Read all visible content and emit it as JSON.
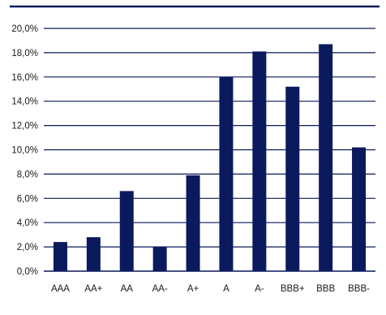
{
  "chart_data": {
    "type": "bar",
    "title": "",
    "xlabel": "",
    "ylabel": "",
    "categories": [
      "AAA",
      "AA+",
      "AA",
      "AA-",
      "A+",
      "A",
      "A-",
      "BBB+",
      "BBB",
      "BBB-"
    ],
    "values": [
      2.4,
      2.8,
      6.6,
      2.0,
      7.9,
      16.0,
      18.1,
      15.2,
      18.7,
      10.2
    ],
    "ylim": [
      0,
      20
    ],
    "ytick_values": [
      0,
      2,
      4,
      6,
      8,
      10,
      12,
      14,
      16,
      18,
      20
    ],
    "ytick_labels": [
      "0,0%",
      "2,0%",
      "4,0%",
      "6,0%",
      "8,0%",
      "10,0%",
      "12,0%",
      "14,0%",
      "16,0%",
      "18,0%",
      "20,0%"
    ],
    "grid": true,
    "legend": "none",
    "colors": {
      "bar": "#0a1a5c",
      "grid": "#0a1a5c",
      "top_rule": "#0a1a5c"
    }
  }
}
